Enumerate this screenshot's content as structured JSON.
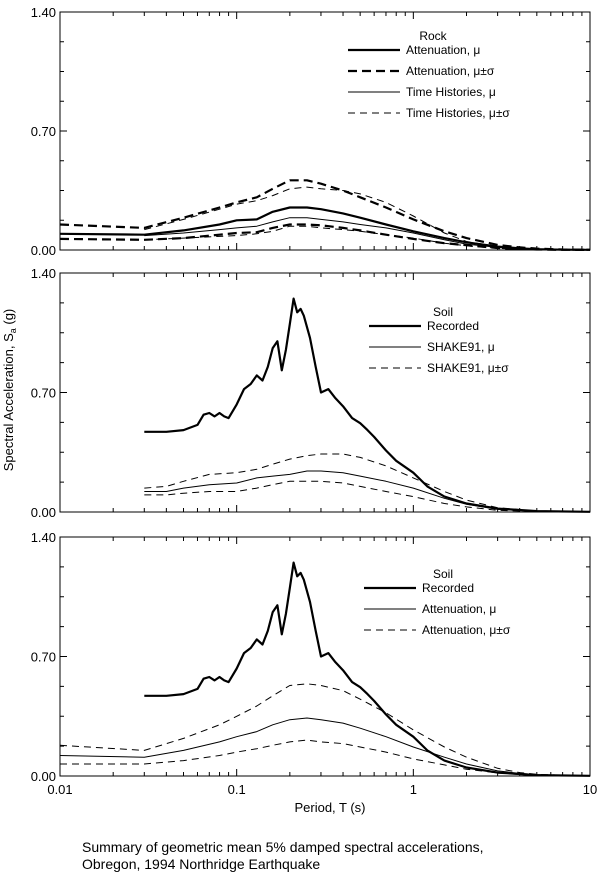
{
  "ylabel": "Spectral Acceleration, S_a (g)",
  "xlabel": "Period, T (s)",
  "caption": {
    "line1": "Summary of geometric mean 5% damped spectral accelerations,",
    "line2": "Obregon, 1994 Northridge Earthquake"
  },
  "colors": {
    "ink": "#000000",
    "background": "#ffffff"
  },
  "chart_data": [
    {
      "type": "line",
      "xscale": "log",
      "xlim": [
        0.01,
        10
      ],
      "ylim": [
        0,
        1.4
      ],
      "yticks": [
        "0.00",
        "0.70",
        "1.40"
      ],
      "xticks": [],
      "legend": {
        "placement": "top-right",
        "header": "Rock"
      },
      "series": [
        {
          "name": "Attenuation, μ",
          "style": "thick-solid",
          "x": [
            0.01,
            0.03,
            0.05,
            0.08,
            0.1,
            0.13,
            0.16,
            0.2,
            0.25,
            0.3,
            0.4,
            0.5,
            0.7,
            1,
            1.5,
            2,
            3,
            4,
            5,
            7,
            10
          ],
          "y": [
            0.095,
            0.09,
            0.115,
            0.15,
            0.175,
            0.18,
            0.225,
            0.25,
            0.25,
            0.24,
            0.215,
            0.19,
            0.15,
            0.11,
            0.07,
            0.045,
            0.02,
            0.01,
            0.005,
            0.002,
            0.001
          ]
        },
        {
          "name": "Attenuation, μ±σ",
          "style": "thick-dashed",
          "x": [
            0.01,
            0.03,
            0.05,
            0.08,
            0.1,
            0.13,
            0.16,
            0.2,
            0.25,
            0.3,
            0.4,
            0.5,
            0.7,
            1,
            1.5,
            2,
            3,
            4,
            5,
            7,
            10
          ],
          "y": [
            0.15,
            0.13,
            0.19,
            0.25,
            0.28,
            0.31,
            0.36,
            0.41,
            0.41,
            0.39,
            0.35,
            0.31,
            0.25,
            0.18,
            0.11,
            0.07,
            0.03,
            0.015,
            0.008,
            0.003,
            0.001
          ]
        },
        {
          "name": "",
          "style": "thick-dashed",
          "x": [
            0.01,
            0.03,
            0.05,
            0.08,
            0.1,
            0.13,
            0.16,
            0.2,
            0.25,
            0.3,
            0.4,
            0.5,
            0.7,
            1,
            1.5,
            2,
            3,
            4,
            5,
            7,
            10
          ],
          "y": [
            0.065,
            0.06,
            0.07,
            0.09,
            0.1,
            0.105,
            0.13,
            0.15,
            0.15,
            0.145,
            0.13,
            0.115,
            0.09,
            0.065,
            0.04,
            0.028,
            0.012,
            0.006,
            0.003,
            0.001,
            0.0005
          ]
        },
        {
          "name": "Time Histories, μ",
          "style": "solid",
          "x": [
            0.03,
            0.05,
            0.08,
            0.1,
            0.13,
            0.16,
            0.2,
            0.25,
            0.3,
            0.4,
            0.5,
            0.7,
            1,
            1.5,
            2,
            3,
            4,
            5,
            7,
            10
          ],
          "y": [
            0.085,
            0.1,
            0.12,
            0.13,
            0.14,
            0.165,
            0.19,
            0.19,
            0.18,
            0.165,
            0.15,
            0.13,
            0.1,
            0.06,
            0.035,
            0.015,
            0.008,
            0.004,
            0.002,
            0.001
          ]
        },
        {
          "name": "Time Histories, μ±σ",
          "style": "dashed",
          "x": [
            0.03,
            0.05,
            0.08,
            0.1,
            0.13,
            0.16,
            0.2,
            0.25,
            0.3,
            0.4,
            0.5,
            0.7,
            1,
            1.5,
            2,
            3,
            4,
            5,
            7,
            10
          ],
          "y": [
            0.12,
            0.18,
            0.24,
            0.27,
            0.29,
            0.32,
            0.36,
            0.37,
            0.36,
            0.35,
            0.33,
            0.28,
            0.2,
            0.1,
            0.05,
            0.02,
            0.01,
            0.005,
            0.002,
            0.001
          ]
        },
        {
          "name": "",
          "style": "dashed",
          "x": [
            0.03,
            0.05,
            0.08,
            0.1,
            0.13,
            0.16,
            0.2,
            0.25,
            0.3,
            0.4,
            0.5,
            0.7,
            1,
            1.5,
            2,
            3,
            4,
            5,
            7,
            10
          ],
          "y": [
            0.06,
            0.07,
            0.08,
            0.085,
            0.095,
            0.11,
            0.14,
            0.14,
            0.13,
            0.12,
            0.11,
            0.09,
            0.07,
            0.04,
            0.025,
            0.01,
            0.005,
            0.003,
            0.001,
            0.0005
          ]
        }
      ]
    },
    {
      "type": "line",
      "xscale": "log",
      "xlim": [
        0.01,
        10
      ],
      "ylim": [
        0,
        1.4
      ],
      "yticks": [
        "0.00",
        "0.70",
        "1.40"
      ],
      "xticks": [],
      "legend": {
        "placement": "top-right",
        "header": "Soil"
      },
      "series": [
        {
          "name": "Recorded",
          "style": "thick-solid",
          "x": [
            0.03,
            0.04,
            0.05,
            0.06,
            0.065,
            0.07,
            0.075,
            0.08,
            0.085,
            0.09,
            0.1,
            0.11,
            0.12,
            0.13,
            0.14,
            0.15,
            0.16,
            0.17,
            0.18,
            0.19,
            0.2,
            0.21,
            0.22,
            0.23,
            0.24,
            0.26,
            0.28,
            0.3,
            0.33,
            0.36,
            0.4,
            0.45,
            0.5,
            0.55,
            0.6,
            0.7,
            0.8,
            1,
            1.2,
            1.5,
            2,
            3,
            5,
            10
          ],
          "y": [
            0.47,
            0.47,
            0.48,
            0.51,
            0.57,
            0.58,
            0.56,
            0.58,
            0.56,
            0.55,
            0.63,
            0.72,
            0.75,
            0.8,
            0.77,
            0.85,
            0.96,
            1.0,
            0.83,
            0.95,
            1.1,
            1.25,
            1.17,
            1.19,
            1.15,
            1.02,
            0.85,
            0.7,
            0.72,
            0.67,
            0.62,
            0.55,
            0.52,
            0.48,
            0.44,
            0.36,
            0.3,
            0.23,
            0.15,
            0.09,
            0.05,
            0.02,
            0.005,
            0.001
          ]
        },
        {
          "name": "SHAKE91, μ",
          "style": "solid",
          "x": [
            0.03,
            0.04,
            0.05,
            0.07,
            0.1,
            0.13,
            0.16,
            0.2,
            0.25,
            0.3,
            0.4,
            0.5,
            0.7,
            1,
            1.5,
            2,
            3,
            5,
            7,
            10
          ],
          "y": [
            0.12,
            0.12,
            0.14,
            0.16,
            0.17,
            0.2,
            0.21,
            0.22,
            0.24,
            0.24,
            0.23,
            0.21,
            0.18,
            0.14,
            0.08,
            0.045,
            0.015,
            0.004,
            0.002,
            0.001
          ]
        },
        {
          "name": "SHAKE91, μ±σ",
          "style": "dashed",
          "x": [
            0.03,
            0.04,
            0.05,
            0.07,
            0.1,
            0.13,
            0.16,
            0.2,
            0.25,
            0.3,
            0.4,
            0.5,
            0.7,
            1,
            1.5,
            2,
            3,
            5,
            7,
            10
          ],
          "y": [
            0.14,
            0.15,
            0.18,
            0.22,
            0.23,
            0.25,
            0.28,
            0.31,
            0.33,
            0.34,
            0.34,
            0.32,
            0.27,
            0.2,
            0.12,
            0.07,
            0.025,
            0.006,
            0.003,
            0.001
          ]
        },
        {
          "name": "",
          "style": "dashed",
          "x": [
            0.03,
            0.04,
            0.05,
            0.07,
            0.1,
            0.13,
            0.16,
            0.2,
            0.25,
            0.3,
            0.4,
            0.5,
            0.7,
            1,
            1.5,
            2,
            3,
            5,
            7,
            10
          ],
          "y": [
            0.1,
            0.1,
            0.11,
            0.12,
            0.12,
            0.14,
            0.16,
            0.18,
            0.18,
            0.18,
            0.17,
            0.15,
            0.12,
            0.09,
            0.05,
            0.03,
            0.01,
            0.003,
            0.001,
            0.0005
          ]
        }
      ]
    },
    {
      "type": "line",
      "xscale": "log",
      "xlim": [
        0.01,
        10
      ],
      "ylim": [
        0,
        1.4
      ],
      "yticks": [
        "0.00",
        "0.70",
        "1.40"
      ],
      "xticks": [
        "0.01",
        "0.1",
        "1",
        "10"
      ],
      "legend": {
        "placement": "top-right",
        "header": "Soil"
      },
      "series": [
        {
          "name": "Recorded",
          "style": "thick-solid",
          "x": [
            0.03,
            0.04,
            0.05,
            0.06,
            0.065,
            0.07,
            0.075,
            0.08,
            0.085,
            0.09,
            0.1,
            0.11,
            0.12,
            0.13,
            0.14,
            0.15,
            0.16,
            0.17,
            0.18,
            0.19,
            0.2,
            0.21,
            0.22,
            0.23,
            0.24,
            0.26,
            0.28,
            0.3,
            0.33,
            0.36,
            0.4,
            0.45,
            0.5,
            0.55,
            0.6,
            0.7,
            0.8,
            1,
            1.2,
            1.5,
            2,
            3,
            5,
            10
          ],
          "y": [
            0.47,
            0.47,
            0.48,
            0.51,
            0.57,
            0.58,
            0.56,
            0.58,
            0.56,
            0.55,
            0.63,
            0.72,
            0.75,
            0.8,
            0.77,
            0.85,
            0.96,
            1.0,
            0.83,
            0.95,
            1.1,
            1.25,
            1.17,
            1.19,
            1.15,
            1.02,
            0.85,
            0.7,
            0.72,
            0.67,
            0.62,
            0.55,
            0.52,
            0.48,
            0.44,
            0.36,
            0.3,
            0.23,
            0.15,
            0.09,
            0.05,
            0.02,
            0.005,
            0.001
          ]
        },
        {
          "name": "Attenuation, μ",
          "style": "solid",
          "x": [
            0.01,
            0.03,
            0.05,
            0.08,
            0.1,
            0.13,
            0.16,
            0.2,
            0.25,
            0.3,
            0.4,
            0.5,
            0.7,
            1,
            1.5,
            2,
            3,
            4,
            5,
            7,
            10
          ],
          "y": [
            0.12,
            0.11,
            0.15,
            0.2,
            0.23,
            0.26,
            0.3,
            0.33,
            0.34,
            0.33,
            0.31,
            0.28,
            0.23,
            0.17,
            0.11,
            0.07,
            0.03,
            0.015,
            0.008,
            0.003,
            0.001
          ]
        },
        {
          "name": "Attenuation, μ±σ",
          "style": "dashed",
          "x": [
            0.01,
            0.03,
            0.05,
            0.08,
            0.1,
            0.13,
            0.16,
            0.2,
            0.25,
            0.3,
            0.4,
            0.5,
            0.7,
            1,
            1.5,
            2,
            3,
            4,
            5,
            7,
            10
          ],
          "y": [
            0.18,
            0.15,
            0.22,
            0.3,
            0.35,
            0.41,
            0.47,
            0.53,
            0.54,
            0.53,
            0.5,
            0.45,
            0.37,
            0.27,
            0.17,
            0.11,
            0.045,
            0.02,
            0.01,
            0.004,
            0.001
          ]
        },
        {
          "name": "",
          "style": "dashed",
          "x": [
            0.01,
            0.03,
            0.05,
            0.08,
            0.1,
            0.13,
            0.16,
            0.2,
            0.25,
            0.3,
            0.4,
            0.5,
            0.7,
            1,
            1.5,
            2,
            3,
            4,
            5,
            7,
            10
          ],
          "y": [
            0.07,
            0.07,
            0.09,
            0.12,
            0.14,
            0.16,
            0.18,
            0.2,
            0.21,
            0.2,
            0.19,
            0.17,
            0.14,
            0.1,
            0.065,
            0.04,
            0.018,
            0.009,
            0.005,
            0.002,
            0.0005
          ]
        }
      ]
    }
  ]
}
